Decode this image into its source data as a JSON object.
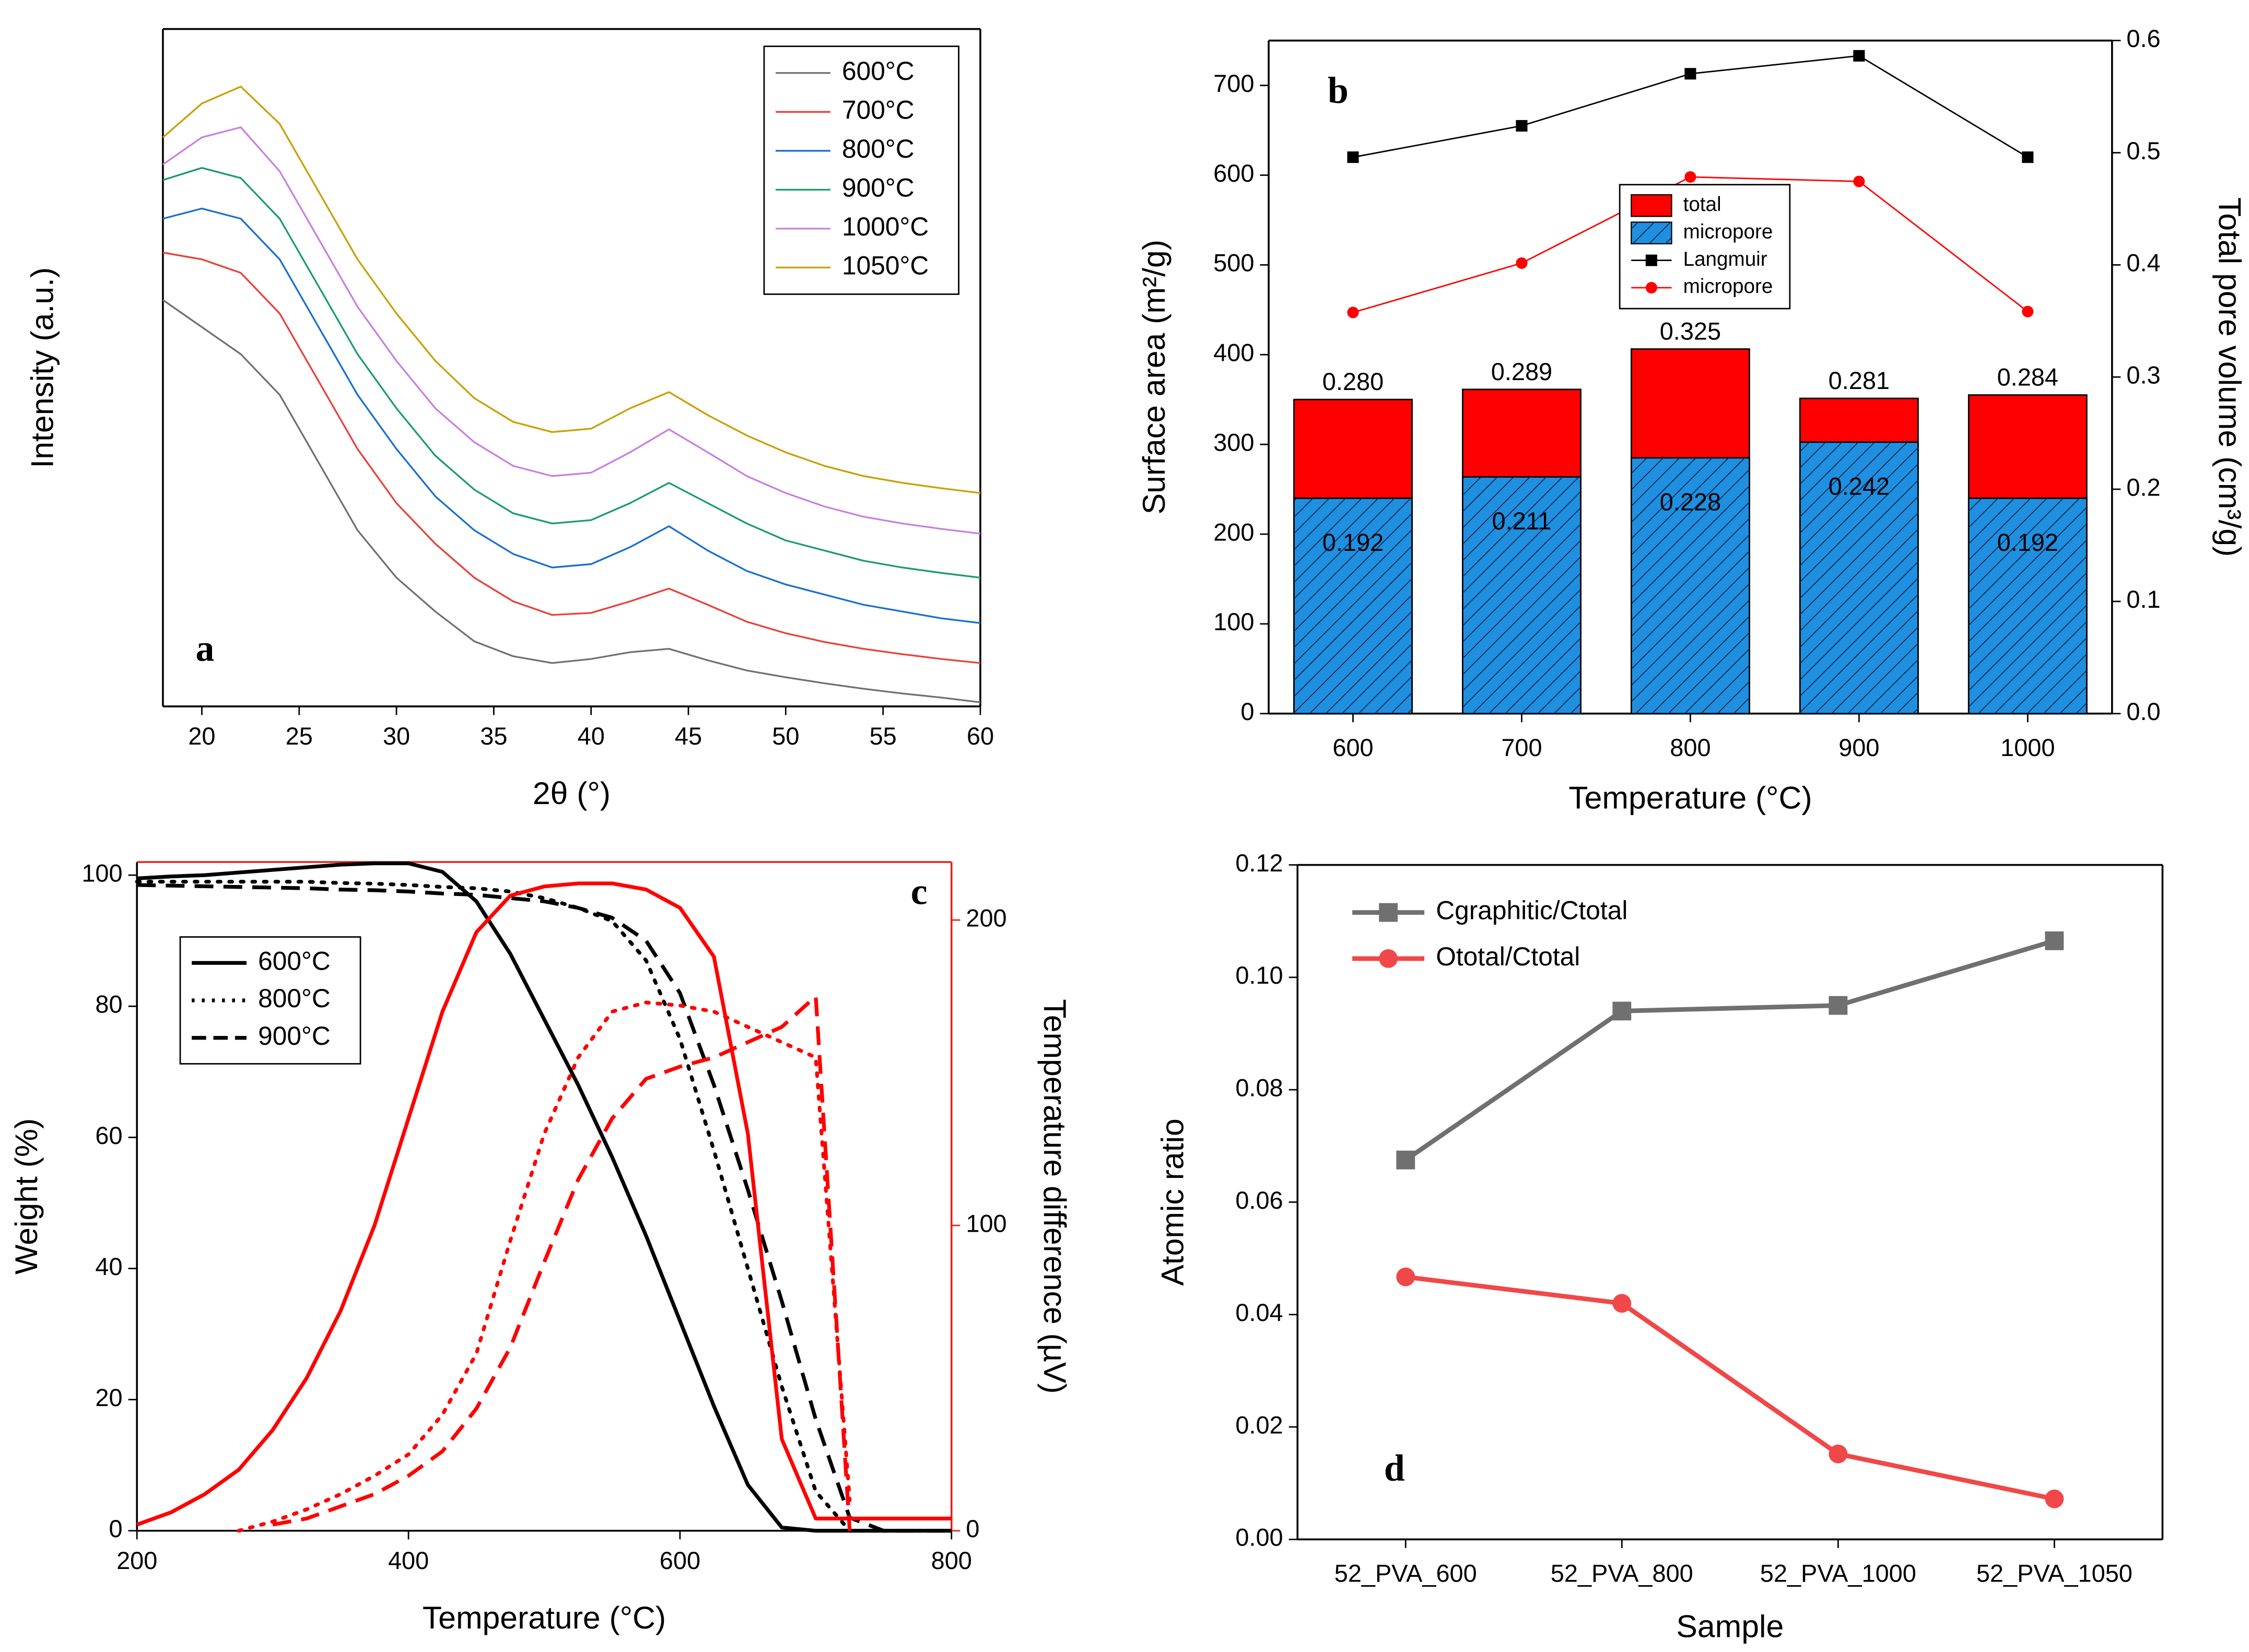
{
  "chart_data": [
    {
      "type": "line",
      "label": "a",
      "xlabel": "2θ (°)",
      "ylabel": "Intensity (a.u.)",
      "x": [
        18,
        20,
        22,
        24,
        26,
        28,
        30,
        32,
        34,
        36,
        38,
        40,
        42,
        44,
        46,
        48,
        50,
        52,
        54,
        56,
        58,
        60
      ],
      "xlim": [
        18,
        60
      ],
      "xticks": [
        20,
        25,
        30,
        35,
        40,
        45,
        50,
        55,
        60
      ],
      "ylim": [
        0,
        100
      ],
      "legend": "upper right",
      "legend_frame": true,
      "series": [
        {
          "name": "600°C",
          "color": "#707070",
          "values": [
            60,
            56,
            52,
            46,
            36,
            26,
            19,
            14,
            9.6,
            7.4,
            6.4,
            7,
            8,
            8.5,
            6.8,
            5.3,
            4.3,
            3.4,
            2.6,
            1.9,
            1.3,
            0.6
          ]
        },
        {
          "name": "700°C",
          "color": "#e8413a",
          "values": [
            67,
            66,
            64,
            58,
            48,
            38,
            30,
            24,
            19,
            15.5,
            13.5,
            13.8,
            15.5,
            17.4,
            15,
            12.5,
            10.8,
            9.5,
            8.5,
            7.7,
            7,
            6.4
          ]
        },
        {
          "name": "800°C",
          "color": "#1a6fd0",
          "values": [
            72,
            73.5,
            72,
            66,
            56,
            46,
            38,
            31,
            26,
            22.5,
            20.5,
            21,
            23.5,
            26.6,
            23,
            20,
            18,
            16.5,
            15,
            14,
            13,
            12.3
          ]
        },
        {
          "name": "900°C",
          "color": "#1a9c6c",
          "values": [
            77.7,
            79.5,
            78,
            72,
            62,
            52,
            44,
            37,
            32,
            28.5,
            27,
            27.5,
            30,
            33,
            30,
            27,
            24.5,
            23,
            21.5,
            20.5,
            19.7,
            19
          ]
        },
        {
          "name": "1000°C",
          "color": "#c880e0",
          "values": [
            80,
            84,
            85.5,
            79,
            69,
            59,
            51,
            44,
            39,
            35.5,
            34,
            34.5,
            37.5,
            40.9,
            37.5,
            34,
            31.5,
            29.5,
            28,
            27,
            26.2,
            25.5
          ]
        },
        {
          "name": "1050°C",
          "color": "#c8a000",
          "values": [
            84,
            89,
            91.5,
            86,
            76,
            66,
            58,
            51,
            45.5,
            42,
            40.5,
            41,
            44,
            46.4,
            43,
            40,
            37.5,
            35.5,
            34,
            33,
            32.2,
            31.5
          ]
        }
      ]
    },
    {
      "type": "bar",
      "label": "b",
      "xlabel": "Temperature (°C)",
      "ylabel": "Surface area (m²/g)",
      "y2label": "Total pore volume (cm³/g)",
      "categories": [
        "600",
        "700",
        "800",
        "900",
        "1000"
      ],
      "ylim": [
        0,
        750
      ],
      "yticks": [
        0,
        100,
        200,
        300,
        400,
        500,
        600,
        700
      ],
      "y2lim": [
        0,
        0.6
      ],
      "y2ticks": [
        {
          "value": 0,
          "label": "0.0"
        },
        0.1,
        0.2,
        0.3,
        0.4,
        0.5,
        0.6
      ],
      "legend": "center",
      "legend_frame": true,
      "series": [
        {
          "name": "total",
          "type": "bar",
          "axis": "y2",
          "color": "#ff0000",
          "values": [
            0.28,
            0.289,
            0.325,
            0.281,
            0.284
          ],
          "value_labels": [
            "0.280",
            "0.289",
            "0.325",
            "0.281",
            "0.284"
          ]
        },
        {
          "name": "micropore",
          "type": "bar",
          "axis": "y2",
          "color": "#1f8fe0",
          "hatch": true,
          "values": [
            0.192,
            0.211,
            0.228,
            0.242,
            0.192
          ],
          "value_labels": [
            "0.192",
            "0.211",
            "0.228",
            "0.242",
            "0.192"
          ]
        },
        {
          "name": "Langmuir",
          "type": "line",
          "marker": "square",
          "color": "#000000",
          "values": [
            620,
            655,
            713,
            733,
            620
          ]
        },
        {
          "name": "micropore",
          "type": "line",
          "marker": "circle",
          "color": "#ff0000",
          "values": [
            447,
            502,
            598,
            593,
            448
          ]
        }
      ]
    },
    {
      "type": "line",
      "label": "c",
      "xlabel": "Temperature (°C)",
      "ylabel": "Weight (%)",
      "y2label": "Temperature difference (µV)",
      "x": [
        200,
        225,
        250,
        275,
        300,
        325,
        350,
        375,
        400,
        425,
        450,
        475,
        500,
        525,
        550,
        575,
        600,
        625,
        650,
        675,
        700,
        725,
        750,
        775,
        800
      ],
      "xlim": [
        200,
        800
      ],
      "xticks": [
        200,
        400,
        600,
        800
      ],
      "ylim": [
        0,
        102
      ],
      "yticks": [
        0,
        20,
        40,
        60,
        80,
        100
      ],
      "y2lim": [
        0,
        219
      ],
      "y2ticks": [
        0,
        100,
        200
      ],
      "y2_color": "#e8201c",
      "legend": "upper left",
      "legend_frame": true,
      "series": [
        {
          "name": "600°C",
          "color": "#000000",
          "dash": "solid",
          "values": [
            99.5,
            99.8,
            100,
            100.4,
            100.8,
            101.2,
            101.6,
            101.8,
            101.8,
            100.5,
            96,
            88,
            78,
            68,
            57,
            45,
            32,
            19,
            7,
            0.5,
            0,
            0,
            0,
            0,
            0
          ]
        },
        {
          "name": "800°C",
          "color": "#000000",
          "dash": "dot",
          "values": [
            99,
            99,
            99,
            99,
            99,
            99,
            98.8,
            98.7,
            98.5,
            98.2,
            98,
            97.5,
            96.5,
            95,
            93,
            87,
            75,
            58,
            40,
            22,
            6,
            0,
            0,
            0,
            0
          ]
        },
        {
          "name": "900°C",
          "color": "#000000",
          "dash": "dash",
          "values": [
            98.5,
            98.4,
            98.3,
            98.2,
            98.1,
            98,
            97.8,
            97.7,
            97.5,
            97.2,
            97,
            96.5,
            96,
            95,
            93.5,
            90,
            82,
            68,
            52,
            35,
            17,
            2,
            0,
            0,
            0
          ]
        },
        {
          "axis": "y2",
          "color": "#ff0000",
          "dash": "solid",
          "values": [
            2,
            6,
            12,
            20,
            33,
            50,
            72,
            100,
            135,
            170,
            196,
            208,
            211,
            212,
            212,
            210,
            204,
            188,
            130,
            30,
            4,
            4,
            4,
            4,
            4
          ]
        },
        {
          "axis": "y2",
          "color": "#ff0000",
          "dash": "dot",
          "values": [
            null,
            null,
            null,
            0,
            3,
            7,
            12,
            18,
            25,
            38,
            58,
            95,
            130,
            155,
            170,
            173,
            172,
            170,
            165,
            160,
            155,
            10,
            null,
            null,
            null
          ]
        },
        {
          "axis": "y2",
          "color": "#ff0000",
          "dash": "dash",
          "values": [
            null,
            null,
            null,
            null,
            2,
            4,
            8,
            12,
            18,
            26,
            40,
            60,
            88,
            115,
            135,
            148,
            152,
            155,
            160,
            165,
            175,
            0,
            null,
            null,
            null
          ]
        }
      ]
    },
    {
      "type": "line",
      "label": "d",
      "xlabel": "Sample",
      "ylabel": "Atomic ratio",
      "categories": [
        "52_PVA_600",
        "52_PVA_800",
        "52_PVA_1000",
        "52_PVA_1050"
      ],
      "ylim": [
        0,
        0.12
      ],
      "yticks": [
        {
          "value": 0,
          "label": "0.00"
        },
        {
          "value": 0.02,
          "label": "0.02"
        },
        {
          "value": 0.04,
          "label": "0.04"
        },
        {
          "value": 0.06,
          "label": "0.06"
        },
        {
          "value": 0.08,
          "label": "0.08"
        },
        {
          "value": 0.1,
          "label": "0.10"
        },
        {
          "value": 0.12,
          "label": "0.12"
        }
      ],
      "legend": "upper left",
      "legend_frame": false,
      "series": [
        {
          "name": "Cgraphitic/Ctotal",
          "color": "#707070",
          "marker": "square",
          "values": [
            0.0675,
            0.094,
            0.095,
            0.1065
          ]
        },
        {
          "name": "Ototal/Ctotal",
          "color": "#f04848",
          "marker": "circle",
          "values": [
            0.0467,
            0.042,
            0.0152,
            0.0072
          ]
        }
      ]
    }
  ]
}
